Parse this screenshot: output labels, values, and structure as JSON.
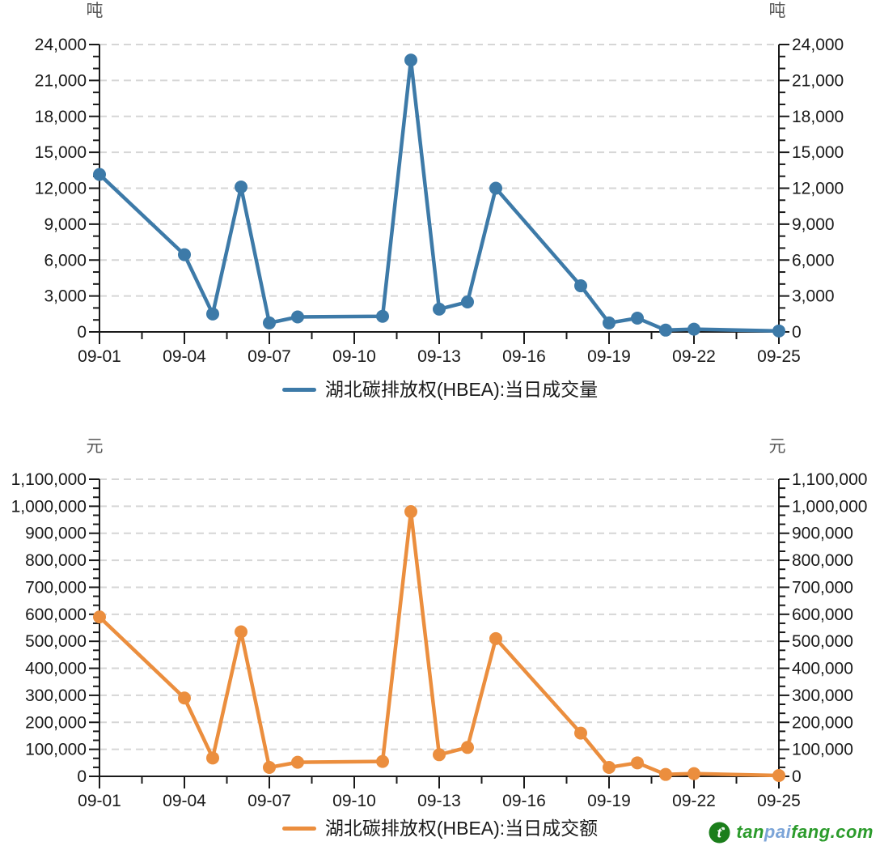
{
  "colors": {
    "volume_line": "#3d7aa8",
    "amount_line": "#eb8e3e",
    "axis": "#1a1a1a",
    "gridline": "#d6d6d6",
    "tick_label": "#1a1a1a",
    "unit_label": "#5a5a5a",
    "watermark_green": "#2b9b2b",
    "watermark_blue": "#7ca5d8",
    "watermark_icon": "#1b7e1b"
  },
  "chart_data": [
    {
      "type": "line",
      "series_name": "volume-series",
      "legend": "湖北碳排放权(HBEA):当日成交量",
      "unit": "吨",
      "color": "#3d7aa8",
      "x_dates": [
        "09-01",
        "09-04",
        "09-05",
        "09-06",
        "09-07",
        "09-08",
        "09-11",
        "09-12",
        "09-13",
        "09-14",
        "09-15",
        "09-18",
        "09-19",
        "09-20",
        "09-21",
        "09-22",
        "09-25"
      ],
      "x_day_offsets": [
        0,
        3,
        4,
        5,
        6,
        7,
        10,
        11,
        12,
        13,
        14,
        17,
        18,
        19,
        20,
        21,
        24
      ],
      "values": [
        13150,
        6450,
        1500,
        12100,
        750,
        1250,
        1300,
        22700,
        1900,
        2500,
        12000,
        3850,
        750,
        1150,
        150,
        230,
        80
      ],
      "x_tick_labels": [
        "09-01",
        "09-04",
        "09-07",
        "09-10",
        "09-13",
        "09-16",
        "09-19",
        "09-22",
        "09-25"
      ],
      "x_tick_day_offsets": [
        0,
        3,
        6,
        9,
        12,
        15,
        18,
        21,
        24
      ],
      "y_ticks": [
        0,
        3000,
        6000,
        9000,
        12000,
        15000,
        18000,
        21000,
        24000
      ],
      "ylim": [
        0,
        24000
      ],
      "grid": "horizontal-dashed",
      "legend_position": "bottom-center",
      "marker": "circle"
    },
    {
      "type": "line",
      "series_name": "amount-series",
      "legend": "湖北碳排放权(HBEA):当日成交额",
      "unit": "元",
      "color": "#eb8e3e",
      "x_dates": [
        "09-01",
        "09-04",
        "09-05",
        "09-06",
        "09-07",
        "09-08",
        "09-11",
        "09-12",
        "09-13",
        "09-14",
        "09-15",
        "09-18",
        "09-19",
        "09-20",
        "09-21",
        "09-22",
        "09-25"
      ],
      "x_day_offsets": [
        0,
        3,
        4,
        5,
        6,
        7,
        10,
        11,
        12,
        13,
        14,
        17,
        18,
        19,
        20,
        21,
        24
      ],
      "values": [
        590000,
        290000,
        68000,
        535000,
        33000,
        52000,
        55000,
        980000,
        80000,
        107000,
        510000,
        160000,
        33000,
        50000,
        7000,
        10000,
        3000
      ],
      "x_tick_labels": [
        "09-01",
        "09-04",
        "09-07",
        "09-10",
        "09-13",
        "09-16",
        "09-19",
        "09-22",
        "09-25"
      ],
      "x_tick_day_offsets": [
        0,
        3,
        6,
        9,
        12,
        15,
        18,
        21,
        24
      ],
      "y_ticks": [
        0,
        100000,
        200000,
        300000,
        400000,
        500000,
        600000,
        700000,
        800000,
        900000,
        1000000,
        1100000
      ],
      "ylim": [
        0,
        1100000
      ],
      "grid": "horizontal-dashed",
      "legend_position": "bottom-center",
      "marker": "circle"
    }
  ],
  "watermark": {
    "part1": "tan",
    "part2": "pai",
    "part3": "fang.com",
    "icon": "tanpaifang-logo"
  }
}
